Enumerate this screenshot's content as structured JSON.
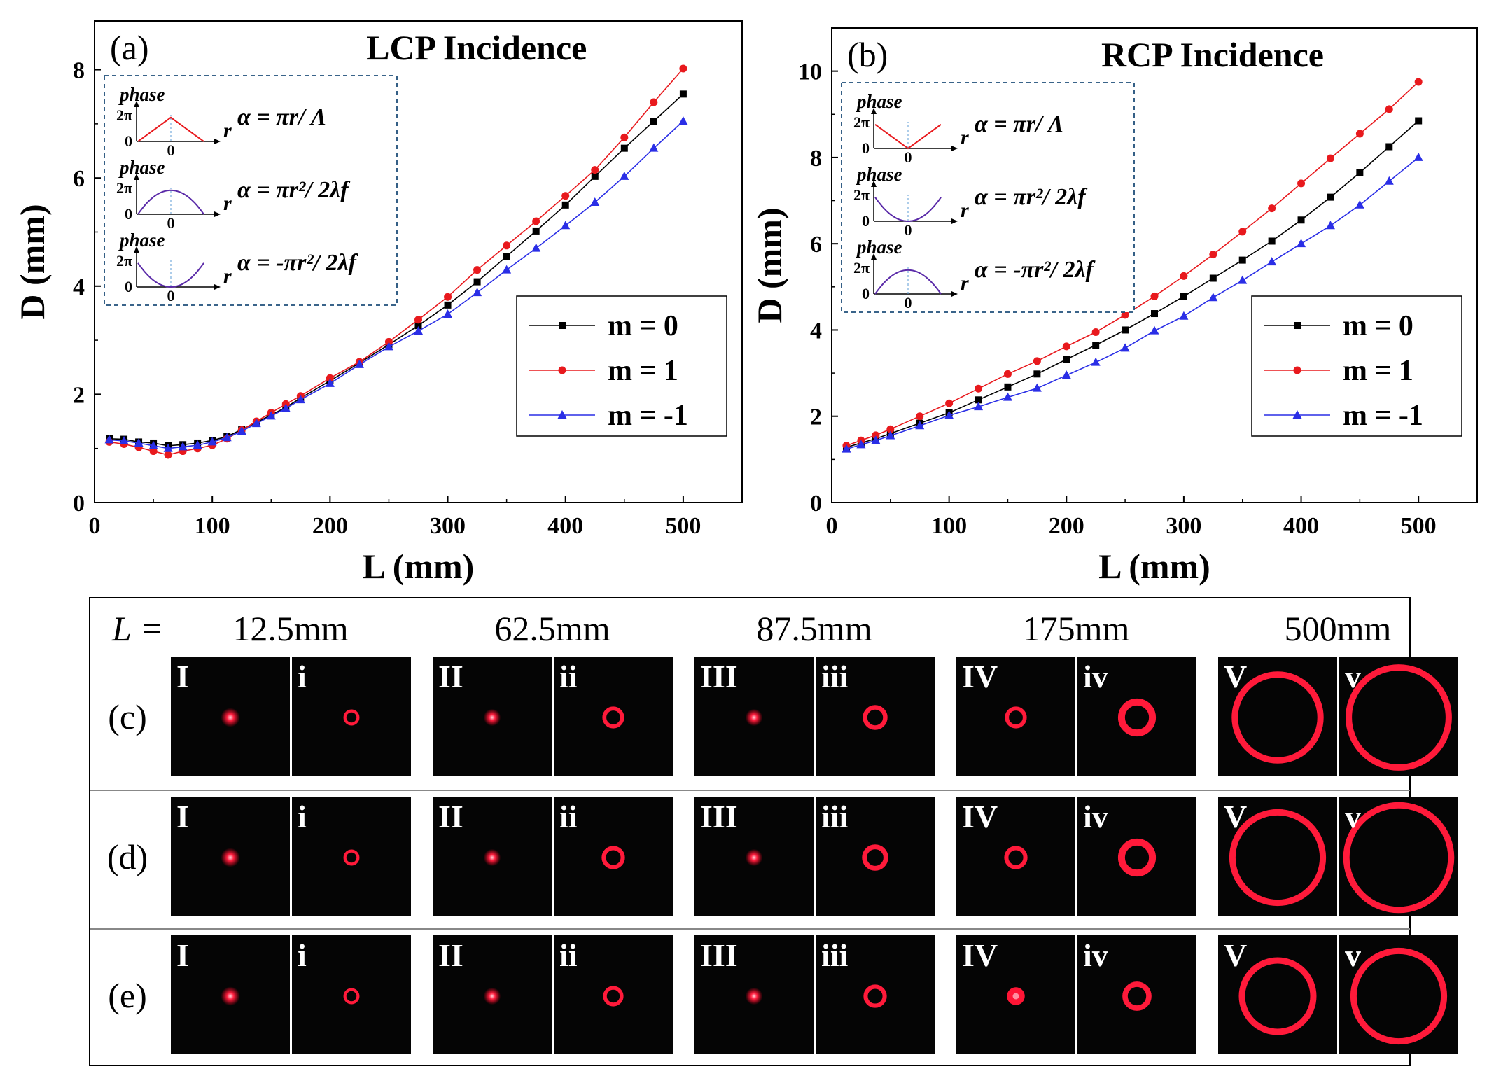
{
  "chart_data": [
    {
      "type": "line",
      "panel_label": "(a)",
      "title": "LCP Incidence",
      "xlabel": "L (mm)",
      "ylabel": "D (mm)",
      "xlim": [
        0,
        550
      ],
      "ylim": [
        0,
        8.9
      ],
      "xticks": [
        0,
        100,
        200,
        300,
        400,
        500
      ],
      "yticks": [
        0,
        2,
        4,
        6,
        8
      ],
      "legend_position": "right",
      "x": [
        12.5,
        25,
        37.5,
        50,
        62.5,
        75,
        87.5,
        100,
        112.5,
        125,
        137.5,
        150,
        162.5,
        175,
        200,
        225,
        250,
        275,
        300,
        325,
        350,
        375,
        400,
        425,
        450,
        475,
        500
      ],
      "series": [
        {
          "name": "m = 0",
          "color": "#000000",
          "marker": "square",
          "values": [
            1.18,
            1.17,
            1.12,
            1.1,
            1.05,
            1.07,
            1.1,
            1.15,
            1.22,
            1.35,
            1.48,
            1.62,
            1.76,
            1.93,
            2.25,
            2.58,
            2.92,
            3.27,
            3.65,
            4.08,
            4.55,
            5.02,
            5.5,
            6.03,
            6.55,
            7.05,
            7.55
          ]
        },
        {
          "name": "m = 1",
          "color": "#e8191d",
          "marker": "circle",
          "values": [
            1.12,
            1.08,
            1.02,
            0.95,
            0.88,
            0.95,
            1.0,
            1.06,
            1.18,
            1.34,
            1.5,
            1.66,
            1.82,
            1.97,
            2.3,
            2.6,
            2.97,
            3.38,
            3.8,
            4.3,
            4.75,
            5.2,
            5.67,
            6.15,
            6.75,
            7.4,
            8.02
          ]
        },
        {
          "name": "m = -1",
          "color": "#2a2ee6",
          "marker": "triangle",
          "values": [
            1.16,
            1.14,
            1.1,
            1.05,
            1.0,
            1.03,
            1.06,
            1.12,
            1.2,
            1.32,
            1.46,
            1.6,
            1.74,
            1.9,
            2.2,
            2.55,
            2.88,
            3.17,
            3.48,
            3.88,
            4.3,
            4.7,
            5.12,
            5.55,
            6.03,
            6.55,
            7.05
          ]
        }
      ],
      "inset": {
        "rows": [
          {
            "ylabel": "phase",
            "tick_top": "2π",
            "tick_zero": "0",
            "x_zero": "0",
            "axis": "r",
            "shape": "tent",
            "color": "#e8191d",
            "formula": "α = πr/ Λ"
          },
          {
            "ylabel": "phase",
            "tick_top": "2π",
            "tick_zero": "0",
            "x_zero": "0",
            "axis": "r",
            "shape": "cap",
            "color": "#5a2aa8",
            "formula": "α = πr²/ 2λf"
          },
          {
            "ylabel": "phase",
            "tick_top": "2π",
            "tick_zero": "0",
            "x_zero": "0",
            "axis": "r",
            "shape": "cup",
            "color": "#5a2aa8",
            "formula": "α = -πr²/ 2λf"
          }
        ]
      }
    },
    {
      "type": "line",
      "panel_label": "(b)",
      "title": "RCP Incidence",
      "xlabel": "L (mm)",
      "ylabel": "D (mm)",
      "xlim": [
        0,
        550
      ],
      "ylim": [
        0,
        11
      ],
      "xticks": [
        0,
        100,
        200,
        300,
        400,
        500
      ],
      "yticks": [
        0,
        2,
        4,
        6,
        8,
        10
      ],
      "legend_position": "right",
      "x": [
        12.5,
        25,
        37.5,
        50,
        75,
        100,
        125,
        150,
        175,
        200,
        225,
        250,
        275,
        300,
        325,
        350,
        375,
        400,
        425,
        450,
        475,
        500
      ],
      "series": [
        {
          "name": "m = 0",
          "color": "#000000",
          "marker": "square",
          "values": [
            1.28,
            1.38,
            1.48,
            1.6,
            1.84,
            2.08,
            2.38,
            2.68,
            2.98,
            3.32,
            3.65,
            4.0,
            4.38,
            4.78,
            5.2,
            5.62,
            6.06,
            6.55,
            7.08,
            7.65,
            8.25,
            8.85
          ]
        },
        {
          "name": "m = 1",
          "color": "#e8191d",
          "marker": "circle",
          "values": [
            1.32,
            1.44,
            1.56,
            1.7,
            2.0,
            2.3,
            2.64,
            2.98,
            3.28,
            3.62,
            3.95,
            4.35,
            4.78,
            5.25,
            5.75,
            6.28,
            6.82,
            7.4,
            7.98,
            8.55,
            9.12,
            9.75
          ]
        },
        {
          "name": "m = -1",
          "color": "#2a2ee6",
          "marker": "triangle",
          "values": [
            1.24,
            1.34,
            1.44,
            1.55,
            1.78,
            2.02,
            2.22,
            2.44,
            2.65,
            2.95,
            3.25,
            3.58,
            3.98,
            4.32,
            4.75,
            5.15,
            5.58,
            6.0,
            6.42,
            6.9,
            7.45,
            8.0
          ]
        }
      ],
      "inset": {
        "rows": [
          {
            "ylabel": "phase",
            "tick_top": "2π",
            "tick_zero": "0",
            "x_zero": "0",
            "axis": "r",
            "shape": "vee",
            "color": "#e8191d",
            "formula": "α = πr/ Λ"
          },
          {
            "ylabel": "phase",
            "tick_top": "2π",
            "tick_zero": "0",
            "x_zero": "0",
            "axis": "r",
            "shape": "cup",
            "color": "#5a2aa8",
            "formula": "α = πr²/ 2λf"
          },
          {
            "ylabel": "phase",
            "tick_top": "2π",
            "tick_zero": "0",
            "x_zero": "0",
            "axis": "r",
            "shape": "cap",
            "color": "#5a2aa8",
            "formula": "α = -πr²/ 2λf"
          }
        ]
      }
    }
  ],
  "images": {
    "l_label": "L =",
    "distances": [
      "12.5mm",
      "62.5mm",
      "87.5mm",
      "175mm",
      "500mm"
    ],
    "rows": [
      {
        "label": "(c)",
        "spots": [
          {
            "label": "I",
            "kind": "dot",
            "size": 0.05
          },
          {
            "label": "i",
            "kind": "ring",
            "size": 0.055
          },
          {
            "label": "II",
            "kind": "dot",
            "size": 0.045
          },
          {
            "label": "ii",
            "kind": "ring",
            "size": 0.075
          },
          {
            "label": "III",
            "kind": "dot",
            "size": 0.045
          },
          {
            "label": "iii",
            "kind": "ring",
            "size": 0.085
          },
          {
            "label": "IV",
            "kind": "ring",
            "size": 0.075
          },
          {
            "label": "iv",
            "kind": "ring",
            "size": 0.13
          },
          {
            "label": "V",
            "kind": "ring",
            "size": 0.36
          },
          {
            "label": "v",
            "kind": "ring",
            "size": 0.42
          }
        ]
      },
      {
        "label": "(d)",
        "spots": [
          {
            "label": "I",
            "kind": "dot",
            "size": 0.05
          },
          {
            "label": "i",
            "kind": "ring",
            "size": 0.055
          },
          {
            "label": "II",
            "kind": "dot",
            "size": 0.045
          },
          {
            "label": "ii",
            "kind": "ring",
            "size": 0.08
          },
          {
            "label": "III",
            "kind": "dot",
            "size": 0.045
          },
          {
            "label": "iii",
            "kind": "ring",
            "size": 0.09
          },
          {
            "label": "IV",
            "kind": "ring",
            "size": 0.08
          },
          {
            "label": "iv",
            "kind": "ring",
            "size": 0.13
          },
          {
            "label": "V",
            "kind": "ring",
            "size": 0.38
          },
          {
            "label": "v",
            "kind": "ring",
            "size": 0.44
          }
        ]
      },
      {
        "label": "(e)",
        "spots": [
          {
            "label": "I",
            "kind": "dot",
            "size": 0.05
          },
          {
            "label": "i",
            "kind": "ring",
            "size": 0.055
          },
          {
            "label": "II",
            "kind": "dot",
            "size": 0.045
          },
          {
            "label": "ii",
            "kind": "ring",
            "size": 0.07
          },
          {
            "label": "III",
            "kind": "dot",
            "size": 0.045
          },
          {
            "label": "iii",
            "kind": "ring",
            "size": 0.08
          },
          {
            "label": "IV",
            "kind": "disk",
            "size": 0.075
          },
          {
            "label": "iv",
            "kind": "ring",
            "size": 0.1
          },
          {
            "label": "V",
            "kind": "ring",
            "size": 0.3
          },
          {
            "label": "v",
            "kind": "ring",
            "size": 0.38
          }
        ]
      }
    ]
  }
}
